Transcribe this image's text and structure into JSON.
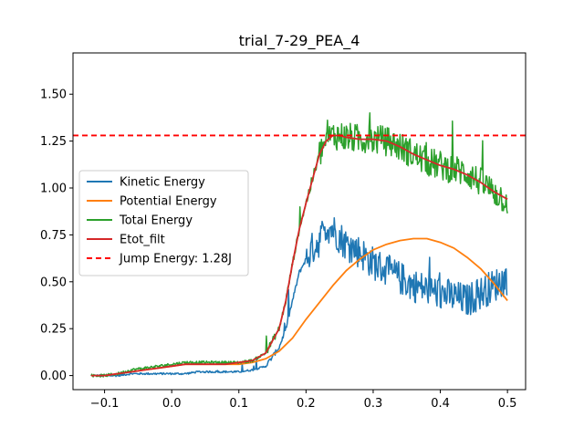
{
  "chart_data": {
    "type": "line",
    "title": "trial_7-29_PEA_4",
    "xlabel": "",
    "ylabel": "",
    "xlim": [
      -0.147,
      0.527
    ],
    "ylim": [
      -0.075,
      1.72
    ],
    "x_ticks": [
      -0.1,
      0.0,
      0.1,
      0.2,
      0.3,
      0.4,
      0.5
    ],
    "x_tick_labels": [
      "−0.1",
      "0.0",
      "0.1",
      "0.2",
      "0.3",
      "0.4",
      "0.5"
    ],
    "y_ticks": [
      0.0,
      0.25,
      0.5,
      0.75,
      1.0,
      1.25,
      1.5
    ],
    "y_tick_labels": [
      "0.00",
      "0.25",
      "0.50",
      "0.75",
      "1.00",
      "1.25",
      "1.50"
    ],
    "grid": false,
    "legend_position": "center-left",
    "series": [
      {
        "name": "Kinetic Energy",
        "color": "#1f77b4",
        "style": "solid",
        "noise": "high",
        "x": [
          -0.12,
          -0.1,
          -0.08,
          -0.06,
          -0.04,
          -0.02,
          0.0,
          0.02,
          0.04,
          0.06,
          0.08,
          0.1,
          0.12,
          0.14,
          0.16,
          0.17,
          0.18,
          0.19,
          0.2,
          0.21,
          0.22,
          0.23,
          0.24,
          0.25,
          0.26,
          0.28,
          0.3,
          0.32,
          0.34,
          0.36,
          0.38,
          0.4,
          0.42,
          0.44,
          0.46,
          0.48,
          0.5
        ],
        "y": [
          0.0,
          0.0,
          0.0,
          0.01,
          0.01,
          0.01,
          0.01,
          0.01,
          0.02,
          0.02,
          0.02,
          0.02,
          0.03,
          0.05,
          0.15,
          0.25,
          0.4,
          0.55,
          0.62,
          0.68,
          0.72,
          0.8,
          0.78,
          0.74,
          0.7,
          0.66,
          0.6,
          0.56,
          0.52,
          0.48,
          0.46,
          0.44,
          0.42,
          0.4,
          0.44,
          0.48,
          0.52
        ]
      },
      {
        "name": "Potential Energy",
        "color": "#ff7f0e",
        "style": "solid",
        "noise": "none",
        "x": [
          -0.12,
          -0.1,
          -0.08,
          -0.06,
          -0.04,
          -0.02,
          0.0,
          0.02,
          0.04,
          0.06,
          0.08,
          0.1,
          0.12,
          0.14,
          0.16,
          0.18,
          0.2,
          0.22,
          0.24,
          0.26,
          0.28,
          0.3,
          0.32,
          0.34,
          0.36,
          0.37,
          0.38,
          0.4,
          0.42,
          0.44,
          0.46,
          0.48,
          0.5
        ],
        "y": [
          0.0,
          0.0,
          0.01,
          0.02,
          0.03,
          0.04,
          0.05,
          0.06,
          0.06,
          0.06,
          0.06,
          0.06,
          0.07,
          0.09,
          0.13,
          0.2,
          0.3,
          0.39,
          0.48,
          0.56,
          0.62,
          0.67,
          0.7,
          0.72,
          0.73,
          0.73,
          0.73,
          0.71,
          0.68,
          0.63,
          0.57,
          0.49,
          0.4
        ]
      },
      {
        "name": "Total Energy",
        "color": "#2ca02c",
        "style": "solid",
        "noise": "high",
        "x": [
          -0.12,
          -0.1,
          -0.08,
          -0.06,
          -0.04,
          -0.02,
          0.0,
          0.02,
          0.04,
          0.06,
          0.08,
          0.1,
          0.12,
          0.14,
          0.16,
          0.17,
          0.18,
          0.19,
          0.2,
          0.21,
          0.22,
          0.23,
          0.24,
          0.25,
          0.26,
          0.28,
          0.3,
          0.32,
          0.34,
          0.36,
          0.38,
          0.4,
          0.42,
          0.44,
          0.46,
          0.48,
          0.5
        ],
        "y": [
          0.0,
          0.0,
          0.01,
          0.03,
          0.04,
          0.05,
          0.06,
          0.07,
          0.07,
          0.07,
          0.07,
          0.07,
          0.08,
          0.12,
          0.25,
          0.4,
          0.6,
          0.78,
          0.92,
          1.05,
          1.18,
          1.25,
          1.28,
          1.28,
          1.27,
          1.26,
          1.26,
          1.25,
          1.22,
          1.18,
          1.14,
          1.12,
          1.1,
          1.08,
          1.03,
          0.98,
          0.93
        ]
      },
      {
        "name": "Etot_filt",
        "color": "#d62728",
        "style": "solid",
        "noise": "none",
        "x": [
          -0.12,
          -0.1,
          -0.08,
          -0.06,
          -0.04,
          -0.02,
          0.0,
          0.02,
          0.04,
          0.06,
          0.08,
          0.1,
          0.12,
          0.14,
          0.16,
          0.17,
          0.18,
          0.19,
          0.2,
          0.21,
          0.22,
          0.23,
          0.24,
          0.25,
          0.26,
          0.28,
          0.3,
          0.32,
          0.34,
          0.36,
          0.38,
          0.4,
          0.42,
          0.44,
          0.46,
          0.48,
          0.5
        ],
        "y": [
          0.0,
          0.0,
          0.01,
          0.02,
          0.03,
          0.04,
          0.05,
          0.06,
          0.06,
          0.06,
          0.06,
          0.07,
          0.08,
          0.12,
          0.25,
          0.4,
          0.6,
          0.78,
          0.92,
          1.05,
          1.18,
          1.25,
          1.28,
          1.28,
          1.27,
          1.26,
          1.26,
          1.25,
          1.22,
          1.18,
          1.15,
          1.12,
          1.1,
          1.07,
          1.03,
          0.98,
          0.94
        ]
      }
    ],
    "reference_lines": [
      {
        "name": "Jump Energy: 1.28J",
        "orientation": "horizontal",
        "y": 1.28,
        "color": "#ff0000",
        "style": "dashed"
      }
    ]
  }
}
